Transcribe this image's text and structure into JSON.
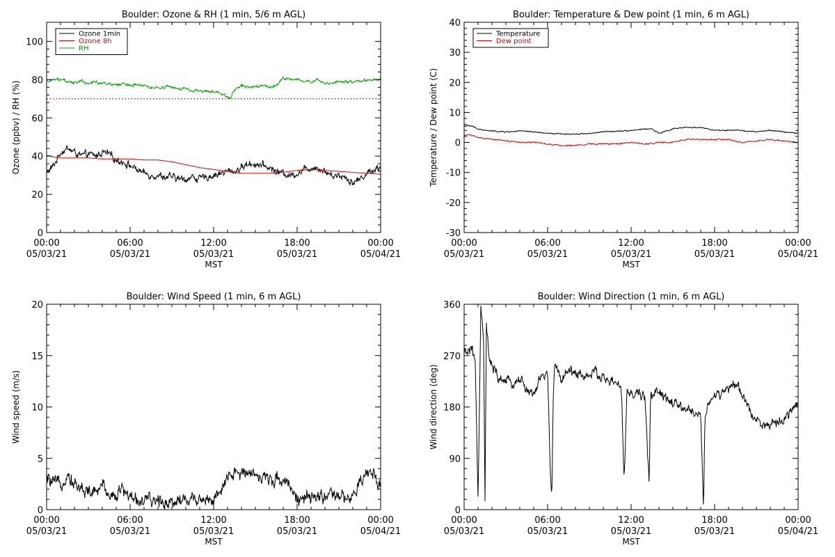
{
  "chart_data": [
    {
      "type": "line",
      "title": "Boulder: Ozone & RH (1 min, 5/6 m AGL)",
      "ylabel": "Ozone (ppbv) / RH (%)",
      "xlabel": "MST",
      "xlim": [
        0,
        24
      ],
      "ylim": [
        0,
        110
      ],
      "x_ticks": [
        0,
        6,
        12,
        18,
        24
      ],
      "x_tick_labels": [
        [
          "00:00",
          "05/03/21"
        ],
        [
          "06:00",
          "05/03/21"
        ],
        [
          "12:00",
          "05/03/21"
        ],
        [
          "18:00",
          "05/03/21"
        ],
        [
          "00:00",
          "05/04/21"
        ]
      ],
      "y_ticks": [
        0,
        20,
        40,
        60,
        80,
        100
      ],
      "grid": false,
      "legend": "top-left",
      "series": [
        {
          "name": "Ozone 1min",
          "color": "#000000",
          "style": "solid",
          "noise": 2.5,
          "x": [
            0,
            0.5,
            1,
            1.5,
            2,
            2.5,
            3,
            3.5,
            4,
            4.5,
            5,
            5.5,
            6,
            6.5,
            7,
            7.5,
            8,
            8.5,
            9,
            9.5,
            10,
            10.5,
            11,
            11.5,
            12,
            12.5,
            13,
            13.5,
            14,
            14.5,
            15,
            15.5,
            16,
            16.5,
            17,
            17.5,
            18,
            18.5,
            19,
            19.5,
            20,
            20.5,
            21,
            21.5,
            22,
            22.5,
            23,
            23.5,
            24
          ],
          "values": [
            31,
            35,
            42,
            44,
            42,
            40,
            41,
            40,
            42,
            41,
            38,
            37,
            35,
            33,
            31,
            30,
            30,
            29,
            29,
            28,
            28,
            29,
            28,
            29,
            30,
            31,
            32,
            32,
            34,
            36,
            36,
            35,
            34,
            32,
            31,
            30,
            31,
            33,
            34,
            34,
            32,
            30,
            30,
            29,
            26,
            28,
            31,
            33,
            34
          ]
        },
        {
          "name": "Ozone 8h",
          "color": "#dd0000",
          "style": "solid",
          "noise": 0,
          "x": [
            0,
            0.5,
            1,
            2,
            3,
            4,
            5,
            6,
            7,
            8,
            9,
            10,
            11,
            12,
            13,
            14,
            15,
            16,
            17,
            18,
            19,
            20,
            21,
            22,
            23,
            24
          ],
          "values": [
            40.5,
            39.5,
            39,
            39,
            39,
            38.5,
            38.5,
            38.5,
            38,
            38,
            37,
            35.5,
            34,
            33,
            32,
            31,
            31,
            31,
            31.5,
            32.5,
            33,
            32.5,
            32,
            31.5,
            31,
            30.5
          ]
        },
        {
          "name": "",
          "color": "#dd0000",
          "style": "dotted",
          "noise": 0,
          "x": [
            0,
            24
          ],
          "values": [
            70,
            70
          ]
        },
        {
          "name": "RH",
          "color": "#00a000",
          "style": "solid",
          "noise": 1.0,
          "x": [
            0,
            0.5,
            1,
            1.5,
            2,
            2.5,
            3,
            3.5,
            4,
            4.5,
            5,
            5.5,
            6,
            6.5,
            7,
            7.5,
            8,
            8.5,
            9,
            9.5,
            10,
            10.5,
            11,
            11.5,
            12,
            12.5,
            13,
            13.2,
            13.5,
            14,
            14.5,
            15,
            15.5,
            16,
            16.5,
            17,
            17.5,
            18,
            18.5,
            19,
            19.5,
            20,
            20.5,
            21,
            21.5,
            22,
            22.5,
            23,
            23.5,
            24
          ],
          "values": [
            79,
            80,
            80,
            79,
            78,
            79,
            78,
            79,
            78,
            78,
            77,
            78,
            77,
            77,
            77,
            76,
            76,
            76,
            76,
            75,
            75,
            74,
            74,
            74,
            74,
            73,
            71,
            70,
            75,
            77,
            76,
            76,
            77,
            76,
            77,
            81,
            80,
            80,
            79,
            79,
            80,
            78,
            78,
            79,
            79,
            79,
            79,
            80,
            80,
            80
          ]
        }
      ]
    },
    {
      "type": "line",
      "title": "Boulder: Temperature & Dew point (1 min, 6 m AGL)",
      "ylabel": "Temperature / Dew point (C)",
      "xlabel": "MST",
      "xlim": [
        0,
        24
      ],
      "ylim": [
        -30,
        40
      ],
      "x_ticks": [
        0,
        6,
        12,
        18,
        24
      ],
      "x_tick_labels": [
        [
          "00:00",
          "05/03/21"
        ],
        [
          "06:00",
          "05/03/21"
        ],
        [
          "12:00",
          "05/03/21"
        ],
        [
          "18:00",
          "05/03/21"
        ],
        [
          "00:00",
          "05/04/21"
        ]
      ],
      "y_ticks": [
        -30,
        -20,
        -10,
        0,
        10,
        20,
        30,
        40
      ],
      "grid": false,
      "legend": "top-left",
      "series": [
        {
          "name": "Temperature",
          "color": "#000000",
          "style": "solid",
          "noise": 0.25,
          "x": [
            0,
            0.5,
            1,
            1.5,
            2,
            3,
            4,
            5,
            6,
            7,
            8,
            9,
            10,
            11,
            12,
            13,
            13.5,
            14,
            15,
            16,
            17,
            18,
            19,
            20,
            21,
            22,
            23,
            24
          ],
          "values": [
            5.5,
            5.5,
            4.5,
            4,
            3.8,
            3.5,
            3.8,
            3.5,
            3,
            2.8,
            2.8,
            3,
            3.5,
            3.8,
            4,
            4.5,
            4.5,
            3,
            4.5,
            5,
            5,
            4,
            4,
            4,
            3.5,
            4,
            3.5,
            3
          ]
        },
        {
          "name": "Dew point",
          "color": "#dd0000",
          "style": "solid",
          "noise": 0.3,
          "x": [
            0,
            0.5,
            1,
            2,
            3,
            4,
            5,
            6,
            7,
            8,
            9,
            10,
            11,
            12,
            13,
            14,
            15,
            16,
            17,
            18,
            19,
            20,
            21,
            22,
            23,
            24
          ],
          "values": [
            2.5,
            2.5,
            1.5,
            1,
            0.5,
            0,
            0,
            -0.5,
            -1,
            -1,
            -0.5,
            -0.5,
            -0.5,
            0,
            -0.5,
            0,
            0,
            1,
            1,
            1,
            1,
            0,
            0.5,
            1,
            0.5,
            0
          ]
        }
      ]
    },
    {
      "type": "line",
      "title": "Boulder: Wind Speed (1 min, 6 m AGL)",
      "ylabel": "Wind speed (m/s)",
      "xlabel": "MST",
      "xlim": [
        0,
        24
      ],
      "ylim": [
        0,
        20
      ],
      "x_ticks": [
        0,
        6,
        12,
        18,
        24
      ],
      "x_tick_labels": [
        [
          "00:00",
          "05/03/21"
        ],
        [
          "06:00",
          "05/03/21"
        ],
        [
          "12:00",
          "05/03/21"
        ],
        [
          "18:00",
          "05/03/21"
        ],
        [
          "00:00",
          "05/04/21"
        ]
      ],
      "y_ticks": [
        0,
        5,
        10,
        15,
        20
      ],
      "grid": false,
      "series": [
        {
          "name": "",
          "color": "#000000",
          "style": "solid",
          "noise": 0.9,
          "x": [
            0,
            0.5,
            1,
            1.5,
            2,
            2.5,
            3,
            3.5,
            4,
            4.5,
            5,
            5.5,
            6,
            6.5,
            7,
            7.5,
            8,
            8.5,
            9,
            9.5,
            10,
            10.5,
            11,
            11.5,
            12,
            12.5,
            13,
            13.5,
            14,
            14.5,
            15,
            15.5,
            16,
            16.5,
            17,
            17.5,
            18,
            18.5,
            19,
            19.5,
            20,
            20.5,
            21,
            21.5,
            22,
            22.5,
            23,
            23.5,
            24
          ],
          "values": [
            3,
            2.5,
            2.5,
            3.5,
            2.5,
            2,
            1.8,
            1.5,
            2.5,
            1.5,
            1.5,
            2,
            1.2,
            1,
            0.8,
            0.8,
            0.9,
            0.8,
            0.8,
            1,
            1,
            1,
            1.2,
            1,
            1,
            1.5,
            3,
            3.5,
            3.5,
            4,
            3.5,
            3,
            3,
            3,
            3,
            2.5,
            1,
            1,
            1,
            1.2,
            1.5,
            1.2,
            1.2,
            1.2,
            1,
            2.5,
            3.5,
            3.5,
            2.5
          ]
        }
      ]
    },
    {
      "type": "line",
      "title": "Boulder: Wind Direction (1 min, 6 m AGL)",
      "ylabel": "Wind direction (deg)",
      "xlabel": "MST",
      "xlim": [
        0,
        24
      ],
      "ylim": [
        0,
        360
      ],
      "x_ticks": [
        0,
        6,
        12,
        18,
        24
      ],
      "x_tick_labels": [
        [
          "00:00",
          "05/03/21"
        ],
        [
          "06:00",
          "05/03/21"
        ],
        [
          "12:00",
          "05/03/21"
        ],
        [
          "18:00",
          "05/03/21"
        ],
        [
          "00:00",
          "05/04/21"
        ]
      ],
      "y_ticks": [
        0,
        90,
        180,
        270,
        360
      ],
      "grid": false,
      "series": [
        {
          "name": "",
          "color": "#000000",
          "style": "solid",
          "noise": 12,
          "x": [
            0,
            0.5,
            0.8,
            1,
            1.2,
            1.4,
            1.5,
            1.6,
            1.8,
            2,
            2.5,
            3,
            3.5,
            4,
            4.5,
            5,
            5.5,
            6,
            6.2,
            6.3,
            6.4,
            6.5,
            7,
            7.5,
            8,
            8.5,
            9,
            9.5,
            10,
            10.5,
            11,
            11.3,
            11.5,
            11.7,
            12,
            12.5,
            13,
            13.3,
            13.4,
            13.5,
            14,
            14.5,
            15,
            15.5,
            16,
            16.5,
            17,
            17.2,
            17.3,
            17.5,
            17.8,
            18,
            18.5,
            19,
            19.5,
            20,
            20.5,
            21,
            21.5,
            22,
            22.5,
            23,
            23.5,
            24
          ],
          "values": [
            270,
            285,
            260,
            10,
            350,
            300,
            5,
            330,
            260,
            250,
            230,
            225,
            220,
            230,
            210,
            200,
            230,
            240,
            60,
            20,
            200,
            250,
            230,
            245,
            240,
            235,
            235,
            240,
            230,
            225,
            220,
            210,
            45,
            210,
            200,
            205,
            195,
            45,
            210,
            200,
            205,
            195,
            185,
            180,
            175,
            170,
            165,
            5,
            160,
            185,
            190,
            200,
            205,
            210,
            220,
            200,
            175,
            160,
            150,
            145,
            150,
            160,
            175,
            180
          ]
        }
      ]
    }
  ]
}
